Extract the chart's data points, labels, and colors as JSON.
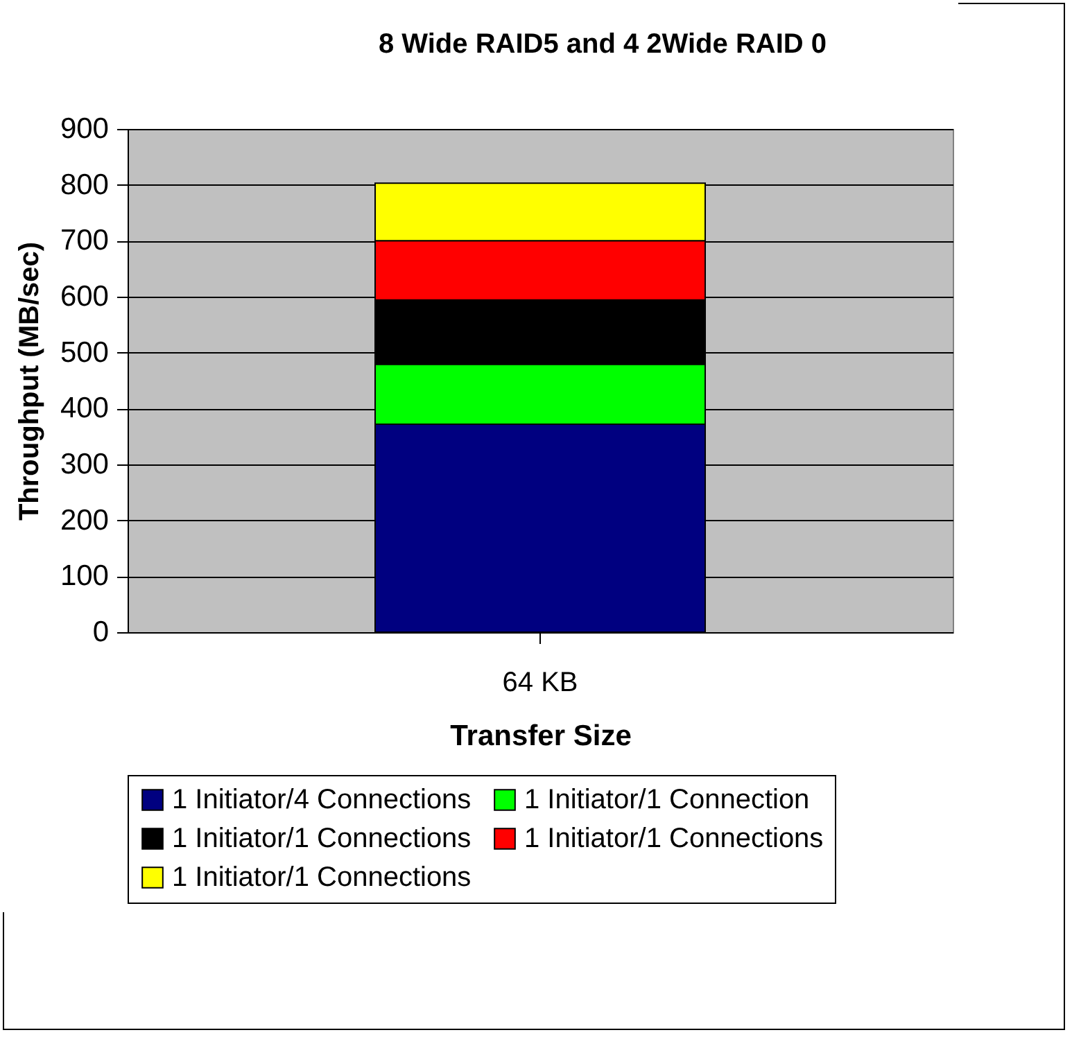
{
  "chart_data": {
    "type": "bar",
    "title": "8 Wide RAID5 and 4 2Wide RAID 0",
    "xlabel": "Transfer Size",
    "ylabel": "Throughput (MB/sec)",
    "categories": [
      "64 KB"
    ],
    "stacked": true,
    "series": [
      {
        "name": "1 Initiator/4 Connections",
        "color": "#000080",
        "values": [
          372
        ]
      },
      {
        "name": "1 Initiator/1 Connection",
        "color": "#00ff00",
        "values": [
          107
        ]
      },
      {
        "name": "1 Initiator/1 Connections",
        "color": "#000000",
        "values": [
          115
        ]
      },
      {
        "name": "1 Initiator/1 Connections",
        "color": "#ff0000",
        "values": [
          106
        ]
      },
      {
        "name": "1 Initiator/1 Connections",
        "color": "#ffff00",
        "values": [
          103
        ]
      }
    ],
    "ylim": [
      0,
      900
    ],
    "yticks": [
      0,
      100,
      200,
      300,
      400,
      500,
      600,
      700,
      800,
      900
    ],
    "grid": "y",
    "legend": "bottom"
  }
}
